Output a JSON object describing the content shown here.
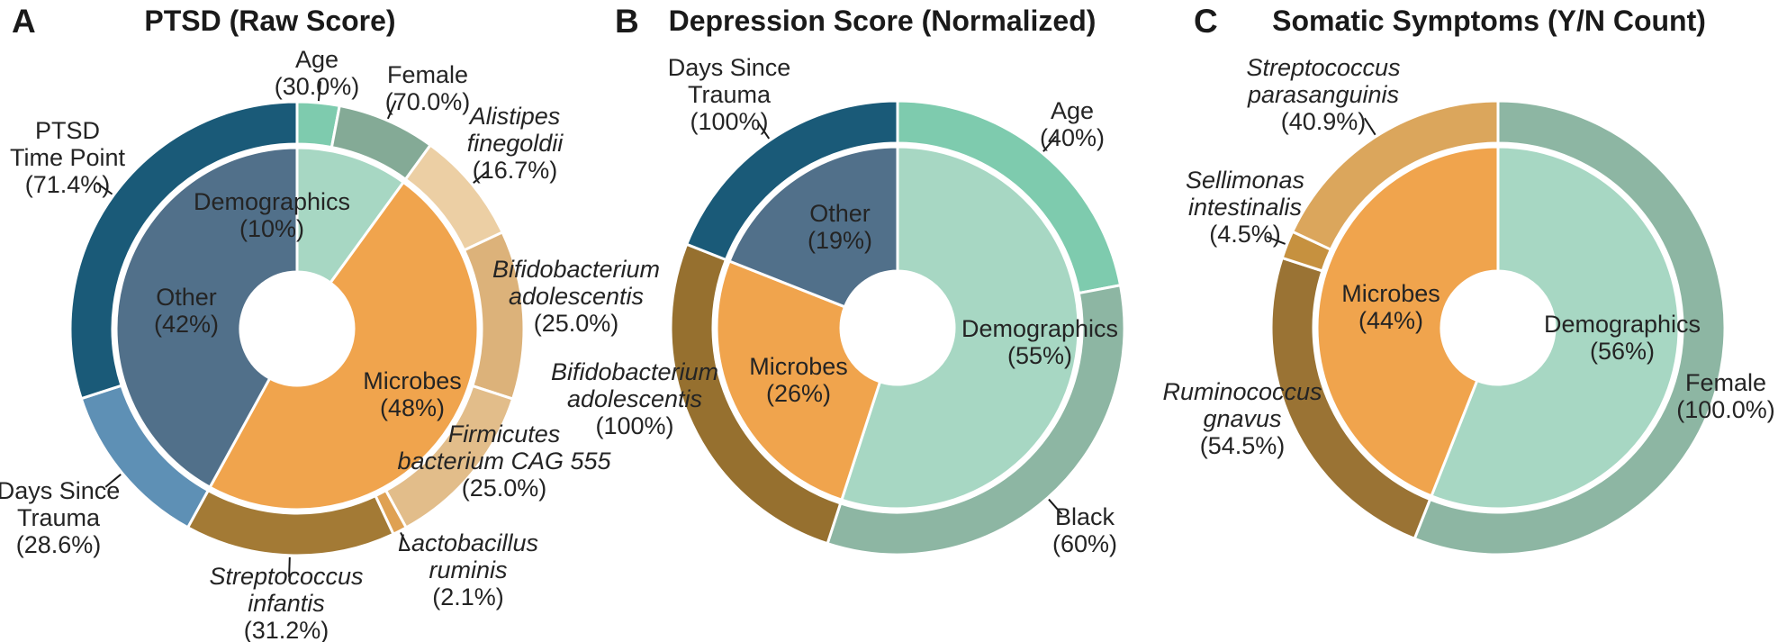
{
  "figure": {
    "background": "#ffffff",
    "text_color": "#242424",
    "leader_line_color": "#1a1a1a",
    "separator_color": "#ffffff"
  },
  "chart_data": [
    {
      "type": "pie",
      "variant": "nested-donut",
      "panel_letter": "A",
      "title": "PTSD (Raw Score)",
      "legend_position": "none",
      "rings": {
        "inner": [
          {
            "id": "demographics",
            "label": "Demographics",
            "label_lines": [
              "Demographics"
            ],
            "pct": "(10%)",
            "value": 10,
            "color": "#a7d7c3",
            "italic": false
          },
          {
            "id": "microbes",
            "label": "Microbes",
            "label_lines": [
              "Microbes"
            ],
            "pct": "(48%)",
            "value": 48,
            "color": "#f0a44d",
            "italic": false
          },
          {
            "id": "other",
            "label": "Other",
            "label_lines": [
              "Other"
            ],
            "pct": "(42%)",
            "value": 42,
            "color": "#51708a",
            "italic": false
          }
        ],
        "outer": [
          {
            "id": "age",
            "parent": "Demographics",
            "label": "Age",
            "label_lines": [
              "Age"
            ],
            "pct": "(30.0%)",
            "value": 3.0,
            "color": "#7ecbae",
            "italic": false
          },
          {
            "id": "female",
            "parent": "Demographics",
            "label": "Female",
            "label_lines": [
              "Female"
            ],
            "pct": "(70.0%)",
            "value": 7.0,
            "color": "#84aa96",
            "italic": false
          },
          {
            "id": "alistipes",
            "parent": "Microbes",
            "label": "Alistipes finegoldii",
            "label_lines": [
              "Alistipes",
              "finegoldii"
            ],
            "pct": "(16.7%)",
            "value": 8.016,
            "color": "#eccfa4",
            "italic": true
          },
          {
            "id": "bifidobacterium",
            "parent": "Microbes",
            "label": "Bifidobacterium adolescentis",
            "label_lines": [
              "Bifidobacterium",
              "adolescentis"
            ],
            "pct": "(25.0%)",
            "value": 12.0,
            "color": "#dcb27a",
            "italic": true
          },
          {
            "id": "firmicutes",
            "parent": "Microbes",
            "label": "Firmicutes bacterium CAG 555",
            "label_lines": [
              "Firmicutes",
              "bacterium CAG 555"
            ],
            "pct": "(25.0%)",
            "value": 12.0,
            "color": "#e2bd8a",
            "italic": true
          },
          {
            "id": "lactobacillus",
            "parent": "Microbes",
            "label": "Lactobacillus ruminis",
            "label_lines": [
              "Lactobacillus",
              "ruminis"
            ],
            "pct": "(2.1%)",
            "value": 1.008,
            "color": "#dfa153",
            "italic": true
          },
          {
            "id": "streptococcus-infantis",
            "parent": "Microbes",
            "label": "Streptococcus infantis",
            "label_lines": [
              "Streptococcus",
              "infantis"
            ],
            "pct": "(31.2%)",
            "value": 14.976,
            "color": "#a37a35",
            "italic": true
          },
          {
            "id": "days-since-trauma",
            "parent": "Other",
            "label": "Days Since Trauma",
            "label_lines": [
              "Days Since",
              "Trauma"
            ],
            "pct": "(28.6%)",
            "value": 12.012,
            "color": "#5e90b5",
            "italic": false
          },
          {
            "id": "ptsd-time-point",
            "parent": "Other",
            "label": "PTSD Time Point",
            "label_lines": [
              "PTSD",
              "Time Point"
            ],
            "pct": "(71.4%)",
            "value": 29.988,
            "color": "#1a5a78",
            "italic": false
          }
        ]
      }
    },
    {
      "type": "pie",
      "variant": "nested-donut",
      "panel_letter": "B",
      "title": "Depression Score (Normalized)",
      "legend_position": "none",
      "rings": {
        "inner": [
          {
            "id": "demographics",
            "label": "Demographics",
            "label_lines": [
              "Demographics"
            ],
            "pct": "(55%)",
            "value": 55,
            "color": "#a7d7c3",
            "italic": false
          },
          {
            "id": "microbes",
            "label": "Microbes",
            "label_lines": [
              "Microbes"
            ],
            "pct": "(26%)",
            "value": 26,
            "color": "#f0a44d",
            "italic": false
          },
          {
            "id": "other",
            "label": "Other",
            "label_lines": [
              "Other"
            ],
            "pct": "(19%)",
            "value": 19,
            "color": "#51708a",
            "italic": false
          }
        ],
        "outer": [
          {
            "id": "age",
            "parent": "Demographics",
            "label": "Age",
            "label_lines": [
              "Age"
            ],
            "pct": "(40%)",
            "value": 22,
            "color": "#7ecbae",
            "italic": false
          },
          {
            "id": "black",
            "parent": "Demographics",
            "label": "Black",
            "label_lines": [
              "Black"
            ],
            "pct": "(60%)",
            "value": 33,
            "color": "#8db6a3",
            "italic": false
          },
          {
            "id": "bifidobacterium",
            "parent": "Microbes",
            "label": "Bifidobacterium adolescentis",
            "label_lines": [
              "Bifidobacterium",
              "adolescentis"
            ],
            "pct": "(100%)",
            "value": 26,
            "color": "#96702f",
            "italic": true
          },
          {
            "id": "days-since-trauma",
            "parent": "Other",
            "label": "Days Since Trauma",
            "label_lines": [
              "Days Since",
              "Trauma"
            ],
            "pct": "(100%)",
            "value": 19,
            "color": "#1a5a78",
            "italic": false
          }
        ]
      }
    },
    {
      "type": "pie",
      "variant": "nested-donut",
      "panel_letter": "C",
      "title": "Somatic Symptoms (Y/N Count)",
      "legend_position": "none",
      "rings": {
        "inner": [
          {
            "id": "demographics",
            "label": "Demographics",
            "label_lines": [
              "Demographics"
            ],
            "pct": "(56%)",
            "value": 56,
            "color": "#a7d7c3",
            "italic": false
          },
          {
            "id": "microbes",
            "label": "Microbes",
            "label_lines": [
              "Microbes"
            ],
            "pct": "(44%)",
            "value": 44,
            "color": "#f0a44d",
            "italic": false
          }
        ],
        "outer": [
          {
            "id": "female",
            "parent": "Demographics",
            "label": "Female",
            "label_lines": [
              "Female"
            ],
            "pct": "(100.0%)",
            "value": 56,
            "color": "#8db6a3",
            "italic": false
          },
          {
            "id": "ruminococcus-gnavus",
            "parent": "Microbes",
            "label": "Ruminococcus gnavus",
            "label_lines": [
              "Ruminococcus",
              "gnavus"
            ],
            "pct": "(54.5%)",
            "value": 23.98,
            "color": "#9a7334",
            "italic": true
          },
          {
            "id": "sellimonas",
            "parent": "Microbes",
            "label": "Sellimonas intestinalis",
            "label_lines": [
              "Sellimonas",
              "intestinalis"
            ],
            "pct": "(4.5%)",
            "value": 1.98,
            "color": "#c6913f",
            "italic": true
          },
          {
            "id": "streptococcus-parasanguinis",
            "parent": "Microbes",
            "label": "Streptococcus parasanguinis",
            "label_lines": [
              "Streptococcus",
              "parasanguinis"
            ],
            "pct": "(40.9%)",
            "value": 18.04,
            "color": "#dba65c",
            "italic": true
          }
        ]
      }
    }
  ]
}
